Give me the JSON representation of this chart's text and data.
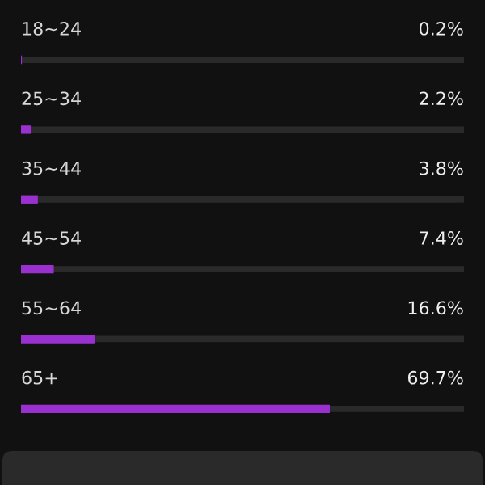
{
  "chart_data": {
    "type": "bar",
    "orientation": "horizontal",
    "categories": [
      "18~24",
      "25~34",
      "35~44",
      "45~54",
      "55~64",
      "65+"
    ],
    "values": [
      0.2,
      2.2,
      3.8,
      7.4,
      16.6,
      69.7
    ],
    "value_labels": [
      "0.2%",
      "2.2%",
      "3.8%",
      "7.4%",
      "16.6%",
      "69.7%"
    ],
    "color": "#9b30d0",
    "xlim": [
      0,
      100
    ],
    "tick_labels": false
  }
}
